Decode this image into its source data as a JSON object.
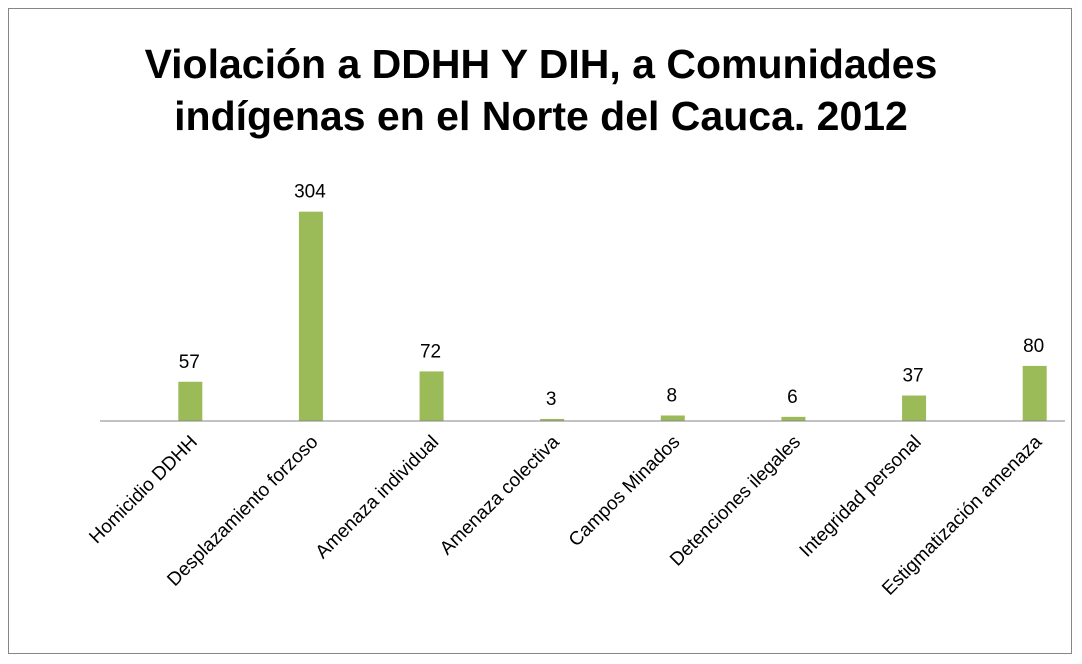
{
  "chart_data": {
    "type": "bar",
    "title": "Violación a DDHH Y DIH, a Comunidades indígenas en el Norte del Cauca. 2012",
    "categories": [
      "Homicidio DDHH",
      "Desplazamiento forzoso",
      "Amenaza individual",
      "Amenaza colectiva",
      "Campos Minados",
      "Detenciones ilegales",
      "Integridad personal",
      "Estigmatización amenaza"
    ],
    "values": [
      57,
      304,
      72,
      3,
      8,
      6,
      37,
      80
    ],
    "color": "#9bbb59",
    "ylim": [
      0,
      350
    ]
  }
}
